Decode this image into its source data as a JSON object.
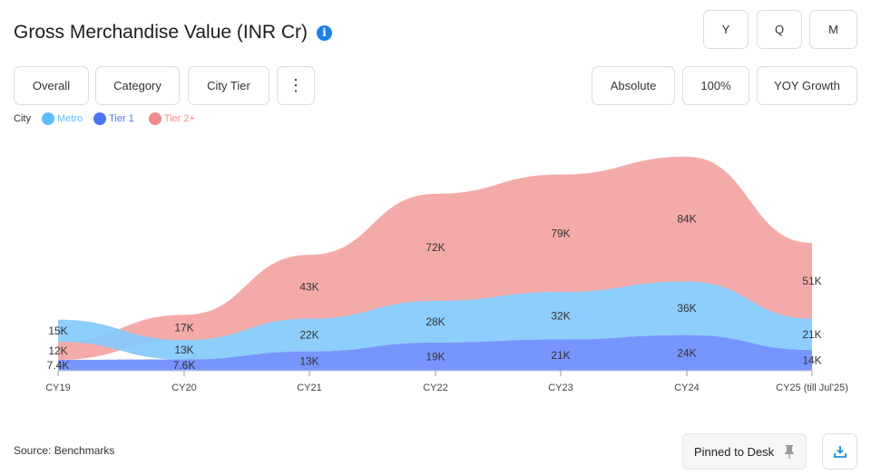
{
  "header": {
    "title": "Gross Merchandise Value (INR Cr)",
    "info_icon": "i"
  },
  "period_buttons": [
    {
      "label": "Y",
      "active": true
    },
    {
      "label": "Q",
      "active": false
    },
    {
      "label": "M",
      "active": false
    }
  ],
  "view_buttons": [
    {
      "label": "Overall",
      "active": false
    },
    {
      "label": "Category",
      "active": false
    },
    {
      "label": "City Tier",
      "active": true
    }
  ],
  "more_icon": "⋮",
  "mode_buttons": [
    {
      "label": "Absolute",
      "active": true
    },
    {
      "label": "100%",
      "active": false
    },
    {
      "label": "YOY Growth",
      "active": false
    }
  ],
  "footer": {
    "source": "Source: Benchmarks",
    "pin_label": "Pinned to Desk",
    "pin_icon": "pin-icon",
    "download_icon": "download-icon"
  },
  "chart_data": {
    "type": "area",
    "stacking": "stacked, sorted ascending by value per period",
    "legend_title": "City",
    "legend_position": "top-left",
    "grid": false,
    "categories": [
      "CY19",
      "CY20",
      "CY21",
      "CY22",
      "CY23",
      "CY24",
      "CY25 (till Jul'25)"
    ],
    "series": [
      {
        "name": "Metro",
        "color": "#82cafc",
        "values": [
          15,
          13,
          22,
          28,
          32,
          36,
          21
        ],
        "labels": [
          "15K",
          "13K",
          "22K",
          "28K",
          "32K",
          "36K",
          "21K"
        ]
      },
      {
        "name": "Tier 1",
        "color": "#6b8cff",
        "values": [
          7.4,
          7.6,
          13,
          19,
          21,
          24,
          14
        ],
        "labels": [
          "7.4K",
          "7.6K",
          "13K",
          "19K",
          "21K",
          "24K",
          "14K"
        ]
      },
      {
        "name": "Tier 2+",
        "color": "#f4a3a3",
        "values": [
          12,
          17,
          43,
          72,
          79,
          84,
          51
        ],
        "labels": [
          "12K",
          "17K",
          "43K",
          "72K",
          "79K",
          "84K",
          "51K"
        ]
      }
    ],
    "unit": "K"
  }
}
